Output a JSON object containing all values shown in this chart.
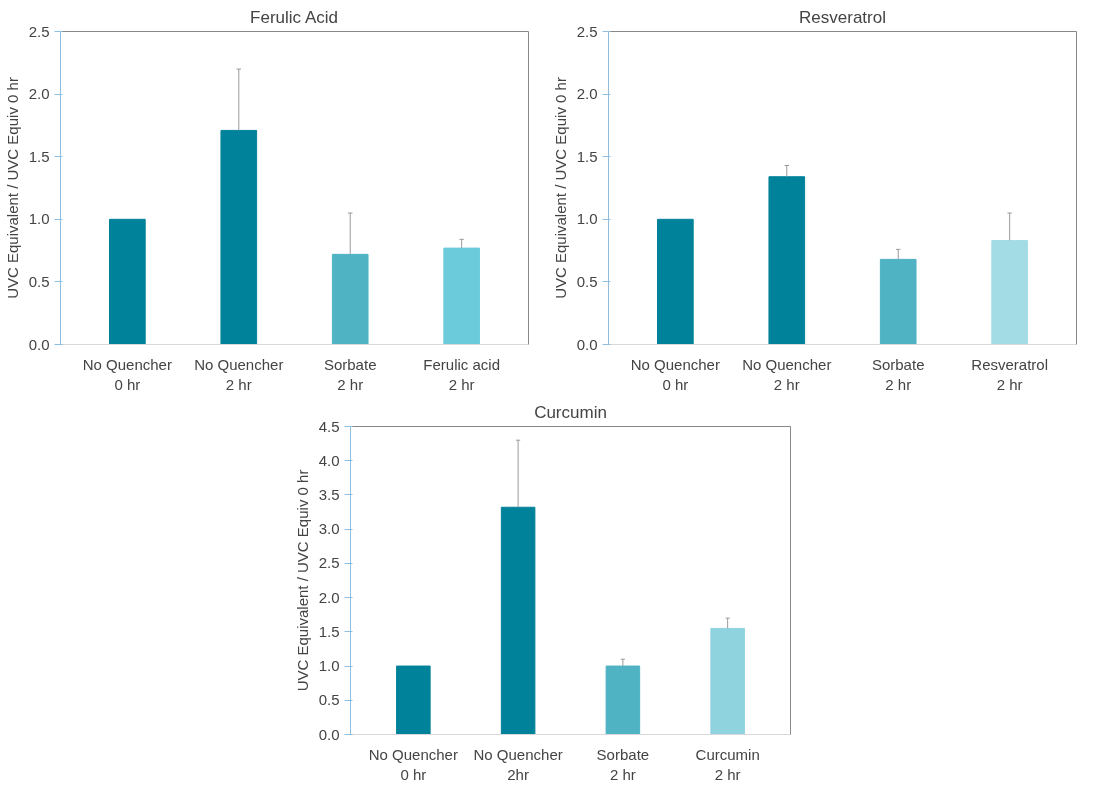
{
  "chart_data": [
    {
      "type": "bar",
      "title": "Ferulic Acid",
      "ylabel": "UVC Equivalent / UVC Equiv 0 hr",
      "categories": [
        "No Quencher\n0 hr",
        "No Quencher\n2 hr",
        "Sorbate\n2 hr",
        "Ferulic acid\n2 hr"
      ],
      "values": [
        1.0,
        1.71,
        0.72,
        0.77
      ],
      "colors": [
        "#00829a",
        "#00829a",
        "#4fb3c4",
        "#6ccbdb"
      ],
      "errors": [
        null,
        [
          1.71,
          2.2
        ],
        [
          0.72,
          1.05
        ],
        [
          0.77,
          0.84
        ]
      ],
      "ylim": [
        0,
        2.5
      ],
      "yticks": [
        {
          "value": 0,
          "label": "0.0"
        },
        {
          "value": 0.5,
          "label": "0.5"
        },
        {
          "value": 1,
          "label": "1.0"
        },
        {
          "value": 1.5,
          "label": "1.5"
        },
        {
          "value": 2,
          "label": "2.0"
        },
        {
          "value": 2.5,
          "label": "2.5"
        }
      ],
      "grid": false
    },
    {
      "type": "bar",
      "title": "Resveratrol",
      "ylabel": "UVC Equivalent / UVC Equiv 0 hr",
      "categories": [
        "No Quencher\n0 hr",
        "No Quencher\n2 hr",
        "Sorbate\n2 hr",
        "Resveratrol\n2 hr"
      ],
      "values": [
        1.0,
        1.34,
        0.68,
        0.83
      ],
      "colors": [
        "#00829a",
        "#00829a",
        "#4fb3c4",
        "#a4dce6"
      ],
      "errors": [
        null,
        [
          1.34,
          1.43
        ],
        [
          0.68,
          0.76
        ],
        [
          0.83,
          1.05
        ]
      ],
      "ylim": [
        0,
        2.5
      ],
      "yticks": [
        {
          "value": 0,
          "label": "0.0"
        },
        {
          "value": 0.5,
          "label": "0.5"
        },
        {
          "value": 1,
          "label": "1.0"
        },
        {
          "value": 1.5,
          "label": "1.5"
        },
        {
          "value": 2,
          "label": "2.0"
        },
        {
          "value": 2.5,
          "label": "2.5"
        }
      ],
      "grid": false
    },
    {
      "type": "bar",
      "title": "Curcumin",
      "ylabel": "UVC Equivalent / UVC Equiv 0 hr",
      "categories": [
        "No Quencher\n0 hr",
        "No Quencher\n2hr",
        "Sorbate\n2 hr",
        "Curcumin\n2 hr"
      ],
      "values": [
        1.0,
        3.32,
        1.0,
        1.55
      ],
      "colors": [
        "#00829a",
        "#00829a",
        "#4fb3c4",
        "#8fd3df"
      ],
      "errors": [
        null,
        [
          3.32,
          4.3
        ],
        [
          1.0,
          1.1
        ],
        [
          1.55,
          1.7
        ]
      ],
      "ylim": [
        0,
        4.5
      ],
      "yticks": [
        {
          "value": 0,
          "label": "0.0"
        },
        {
          "value": 0.5,
          "label": "0.5"
        },
        {
          "value": 1,
          "label": "1.0"
        },
        {
          "value": 1.5,
          "label": "1.5"
        },
        {
          "value": 2,
          "label": "2.0"
        },
        {
          "value": 2.5,
          "label": "2.5"
        },
        {
          "value": 3,
          "label": "3.0"
        },
        {
          "value": 3.5,
          "label": "3.5"
        },
        {
          "value": 4,
          "label": "4.0"
        },
        {
          "value": 4.5,
          "label": "4.5"
        }
      ],
      "grid": false
    }
  ]
}
